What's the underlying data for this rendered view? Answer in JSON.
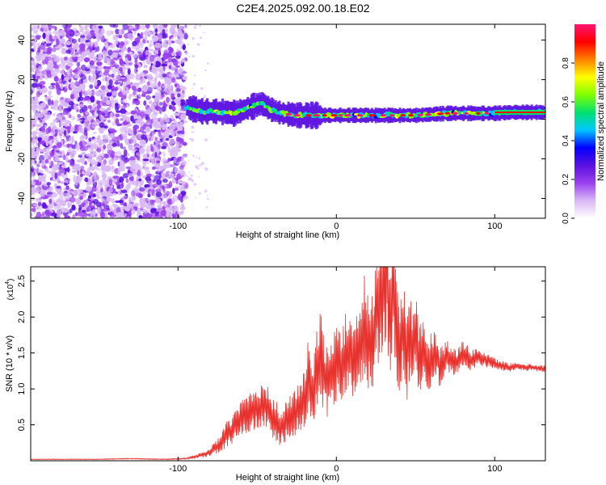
{
  "title": "C2E4.2025.092.00.18.E02",
  "colors": {
    "snr_line": "#e8322e",
    "axis": "#000000"
  },
  "chart_data": [
    {
      "type": "heatmap",
      "xlabel": "Height of straight line (km)",
      "ylabel": "Frequency (Hz)",
      "xlim": [
        -193,
        132
      ],
      "ylim": [
        -50,
        48
      ],
      "x_ticks": [
        -100,
        0,
        100
      ],
      "y_ticks": [
        -40,
        -20,
        0,
        20,
        40
      ],
      "colorbar": {
        "label": "Normalized spectral amplitude",
        "range": [
          0,
          1
        ],
        "ticks": [
          0.0,
          0.2,
          0.4,
          0.6,
          0.8
        ],
        "tick_labels": [
          "0.0",
          "0.2",
          "0.4",
          "0.6",
          "0.8"
        ],
        "colormap": [
          "#ffffff",
          "#d9b8f5",
          "#9a40ee",
          "#5a10e0",
          "#0000ff",
          "#00c8ff",
          "#00e070",
          "#80ff00",
          "#ffff00",
          "#ff8000",
          "#ff0000",
          "#ff1470"
        ]
      },
      "noise_region_x": [
        -193,
        -95
      ],
      "signal_track": [
        [
          -95,
          6
        ],
        [
          -85,
          4
        ],
        [
          -75,
          4
        ],
        [
          -65,
          3
        ],
        [
          -55,
          6
        ],
        [
          -48,
          8
        ],
        [
          -42,
          5
        ],
        [
          -35,
          3
        ],
        [
          -25,
          2
        ],
        [
          -15,
          2
        ],
        [
          -5,
          2
        ],
        [
          0,
          2
        ],
        [
          10,
          2
        ],
        [
          20,
          2
        ],
        [
          30,
          2
        ],
        [
          40,
          2
        ],
        [
          50,
          2
        ],
        [
          60,
          2.5
        ],
        [
          70,
          3
        ],
        [
          80,
          3
        ],
        [
          90,
          3
        ],
        [
          100,
          3
        ],
        [
          110,
          3.5
        ],
        [
          120,
          3.5
        ],
        [
          132,
          3.5
        ]
      ]
    },
    {
      "type": "line",
      "xlabel": "Height of straight line (km)",
      "ylabel": "SNR (10 * v/v)",
      "y_scale_label": "(x10",
      "y_scale_exponent": "4",
      "y_scale_close": ")",
      "xlim": [
        -193,
        132
      ],
      "ylim": [
        0,
        2.7
      ],
      "x_ticks": [
        -100,
        0,
        100
      ],
      "y_ticks": [
        0.5,
        1.0,
        1.5,
        2.0,
        2.5
      ],
      "y_tick_labels": [
        "0.5",
        "1.0",
        "1.5",
        "2.0",
        "2.5"
      ],
      "series": [
        {
          "x": [
            -193,
            -170,
            -150,
            -130,
            -110,
            -95,
            -88,
            -82,
            -75,
            -70,
            -65,
            -60,
            -55,
            -50,
            -45,
            -42,
            -38,
            -35,
            -30,
            -25,
            -20,
            -18,
            -15,
            -12,
            -10,
            -8,
            -5,
            -2,
            0,
            3,
            6,
            10,
            14,
            18,
            22,
            25,
            28,
            30,
            32,
            34,
            36,
            38,
            40,
            42,
            44,
            46,
            48,
            50,
            52,
            55,
            58,
            62,
            66,
            70,
            75,
            80,
            85,
            90,
            95,
            100,
            105,
            110,
            115,
            120,
            125,
            132
          ],
          "y": [
            0.02,
            0.02,
            0.02,
            0.03,
            0.02,
            0.03,
            0.06,
            0.1,
            0.2,
            0.35,
            0.45,
            0.6,
            0.7,
            0.75,
            0.8,
            0.65,
            0.55,
            0.45,
            0.6,
            0.7,
            0.85,
            1.2,
            0.9,
            1.3,
            1.5,
            1.2,
            1.1,
            1.3,
            1.35,
            1.2,
            1.5,
            1.4,
            1.6,
            1.9,
            1.5,
            2.1,
            2.3,
            2.5,
            2.7,
            1.8,
            2.6,
            2.0,
            1.6,
            1.9,
            1.4,
            1.7,
            1.5,
            1.8,
            1.45,
            1.6,
            1.35,
            1.5,
            1.3,
            1.45,
            1.35,
            1.5,
            1.4,
            1.45,
            1.4,
            1.35,
            1.32,
            1.3,
            1.32,
            1.3,
            1.3,
            1.28
          ],
          "envelope_amplitude": [
            0.005,
            0.005,
            0.005,
            0.006,
            0.006,
            0.01,
            0.03,
            0.05,
            0.1,
            0.18,
            0.2,
            0.25,
            0.3,
            0.3,
            0.35,
            0.3,
            0.3,
            0.25,
            0.3,
            0.35,
            0.4,
            0.5,
            0.45,
            0.6,
            0.6,
            0.55,
            0.5,
            0.6,
            0.55,
            0.55,
            0.65,
            0.6,
            0.7,
            0.75,
            0.7,
            0.8,
            0.9,
            1.0,
            1.0,
            0.9,
            0.95,
            0.9,
            0.8,
            0.8,
            0.7,
            0.75,
            0.65,
            0.6,
            0.55,
            0.45,
            0.4,
            0.35,
            0.3,
            0.25,
            0.2,
            0.18,
            0.15,
            0.12,
            0.1,
            0.08,
            0.07,
            0.06,
            0.06,
            0.05,
            0.05,
            0.05
          ]
        }
      ]
    }
  ]
}
